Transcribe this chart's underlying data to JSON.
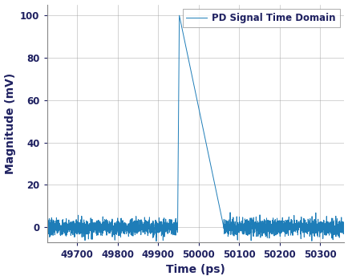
{
  "title": "",
  "xlabel": "Time (ps)",
  "ylabel": "Magnitude (mV)",
  "legend_label": "PD Signal Time Domain",
  "xlim": [
    49625,
    50360
  ],
  "ylim": [
    -7,
    105
  ],
  "xticks": [
    49700,
    49800,
    49900,
    50000,
    50100,
    50200,
    50300
  ],
  "yticks": [
    0,
    20,
    40,
    60,
    80,
    100
  ],
  "line_color": "#1e7db8",
  "grid_color": "#999999",
  "background_color": "#ffffff",
  "noise_amplitude": 2.0,
  "noise_seed": 7,
  "pulse_rise_start": 49948,
  "pulse_peak": 49952,
  "pulse_fall_end": 50062,
  "pulse_peak_value": 100,
  "num_noise_points": 3000,
  "x_start": 49625,
  "x_end": 50360,
  "text_color": "#1e2060",
  "tick_fontsize": 8.5,
  "label_fontsize": 10
}
